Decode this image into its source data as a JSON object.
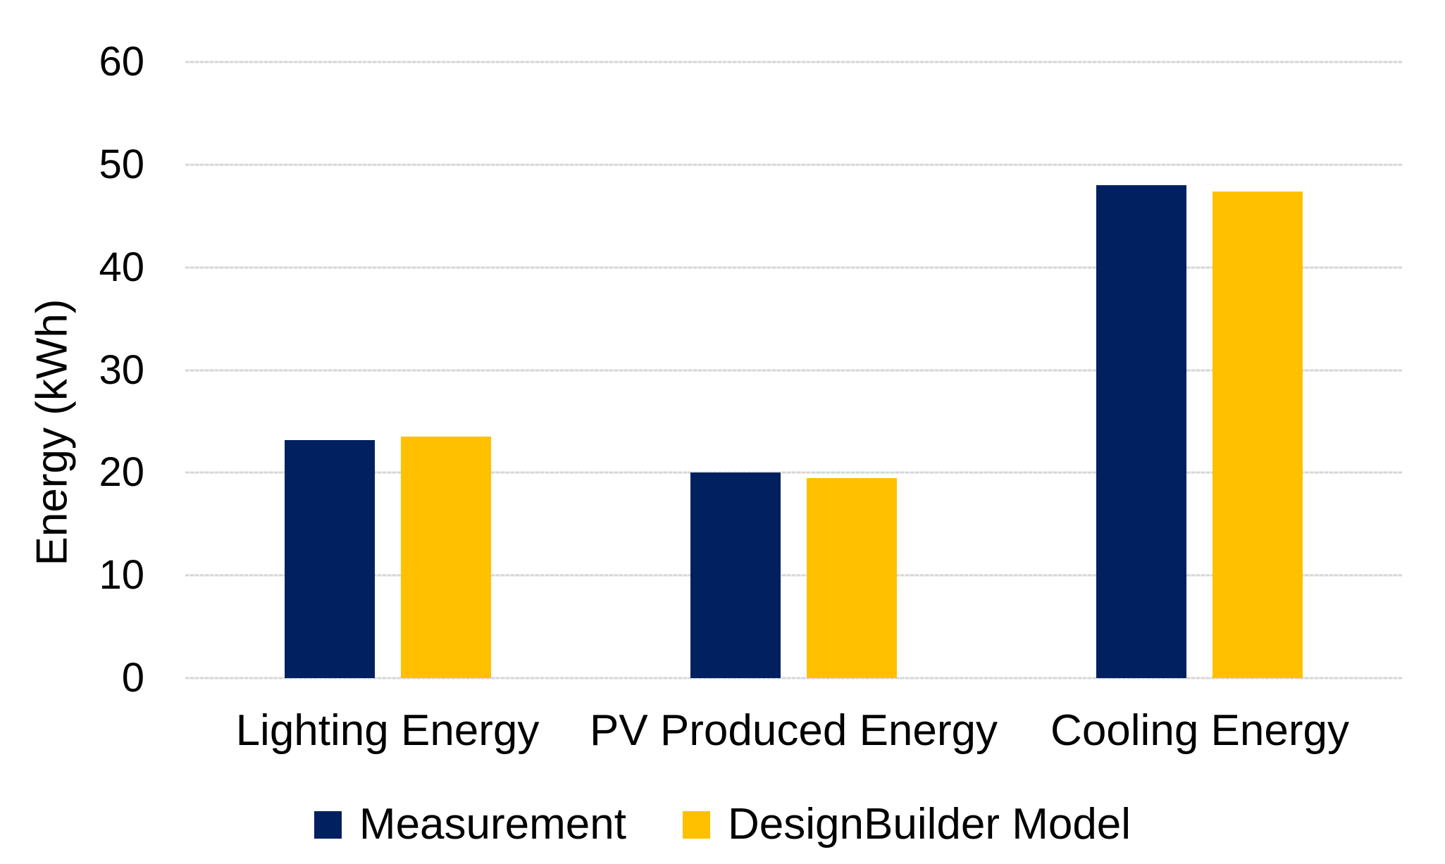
{
  "chart_data": {
    "type": "bar",
    "title": "",
    "categories": [
      "Lighting Energy",
      "PV Produced Energy",
      "Cooling Energy"
    ],
    "series": [
      {
        "name": "Measurement",
        "color": "#002060",
        "values": [
          23.2,
          20,
          48
        ]
      },
      {
        "name": "DesignBuilder Model",
        "color": "#FFC000",
        "values": [
          23.5,
          19.5,
          47.4
        ]
      }
    ],
    "xlabel": "",
    "ylabel": "Energy (kWh)",
    "ylim": [
      0,
      60
    ],
    "yticks": [
      0,
      10,
      20,
      30,
      40,
      50,
      60
    ],
    "grid": true,
    "gridline_color": "#D9D9D9",
    "legend_position": "bottom",
    "background": "#FFFFFF",
    "text_color": "#000000"
  }
}
